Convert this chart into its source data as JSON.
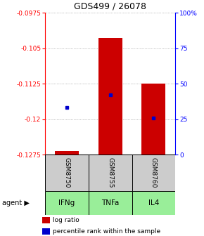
{
  "title": "GDS499 / 26078",
  "samples": [
    "GSM8750",
    "GSM8755",
    "GSM8760"
  ],
  "agents": [
    "IFNg",
    "TNFa",
    "IL4"
  ],
  "bar_bottoms": [
    -0.1275,
    -0.1275,
    -0.1275
  ],
  "bar_tops": [
    -0.1268,
    -0.1028,
    -0.1125
  ],
  "blue_y": [
    -0.1175,
    -0.1148,
    -0.1198
  ],
  "y_min": -0.1275,
  "y_max": -0.0975,
  "left_ticks": [
    -0.0975,
    -0.105,
    -0.1125,
    -0.12,
    -0.1275
  ],
  "right_ticks": [
    100,
    75,
    50,
    25,
    0
  ],
  "bar_color": "#cc0000",
  "blue_color": "#0000cc",
  "grid_color": "#888888",
  "agent_bg": "#99ee99",
  "sample_bg": "#cccccc",
  "bar_width": 0.55,
  "legend_items": [
    {
      "color": "#cc0000",
      "label": "log ratio"
    },
    {
      "color": "#0000cc",
      "label": "percentile rank within the sample"
    }
  ]
}
